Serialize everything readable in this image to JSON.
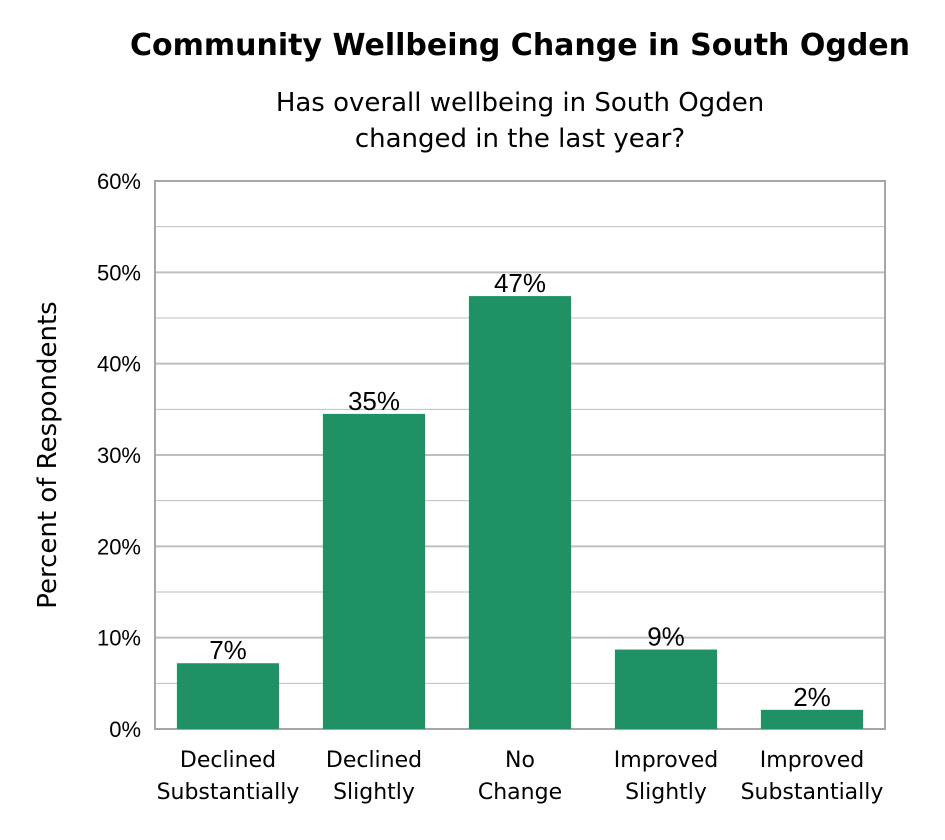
{
  "chart_data": {
    "type": "bar",
    "title": "Community Wellbeing Change in South Ogden",
    "subtitle": [
      "Has overall wellbeing in South Ogden",
      "changed in the last year?"
    ],
    "xlabel": "",
    "ylabel": "Percent of Respondents",
    "categories": [
      [
        "Declined",
        "Substantially"
      ],
      [
        "Declined",
        "Slightly"
      ],
      [
        "No",
        "Change"
      ],
      [
        "Improved",
        "Slightly"
      ],
      [
        "Improved",
        "Substantially"
      ]
    ],
    "values": [
      7.2,
      34.5,
      47.4,
      8.7,
      2.1
    ],
    "data_labels": [
      "7%",
      "35%",
      "47%",
      "9%",
      "2%"
    ],
    "ylim": [
      0,
      60
    ],
    "yticks": [
      0,
      10,
      20,
      30,
      40,
      50,
      60
    ],
    "ytick_labels": [
      "0%",
      "10%",
      "20%",
      "30%",
      "40%",
      "50%",
      "60%"
    ],
    "grid": true,
    "legend": false,
    "bar_color": "#1f9164",
    "grid_color": "#bfbfbf"
  }
}
